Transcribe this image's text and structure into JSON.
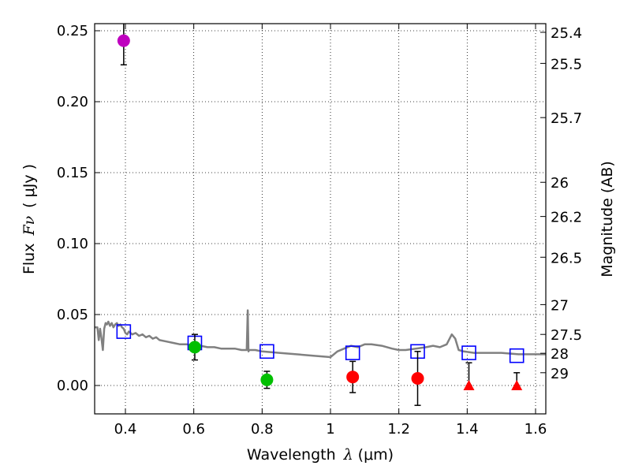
{
  "chart_data": {
    "type": "scatter",
    "xlabel_prefix": "Wavelength",
    "xlabel_symbol": "λ",
    "xlabel_units": "(μm)",
    "ylabel_prefix": "Flux",
    "ylabel_symbol": "Fν",
    "ylabel_units": "( μJy )",
    "y2label": "Magnitude (AB)",
    "xlim": [
      0.31,
      1.63
    ],
    "ylim": [
      -0.02,
      0.255
    ],
    "grid": true,
    "x_ticks": [
      0.4,
      0.6,
      0.8,
      1.0,
      1.2,
      1.4,
      1.6
    ],
    "x_tick_labels": [
      "0.4",
      "0.6",
      "0.8",
      "1",
      "1.2",
      "1.4",
      "1.6"
    ],
    "y_ticks": [
      0.0,
      0.05,
      0.1,
      0.15,
      0.2,
      0.25
    ],
    "y_tick_labels": [
      "0.00",
      "0.05",
      "0.10",
      "0.15",
      "0.20",
      "0.25"
    ],
    "mag_ticks": [
      {
        "label": "25.4",
        "flux": 0.2489
      },
      {
        "label": "25.5",
        "flux": 0.227
      },
      {
        "label": "25.7",
        "flux": 0.1888
      },
      {
        "label": "26",
        "flux": 0.1432
      },
      {
        "label": "26.2",
        "flux": 0.1191
      },
      {
        "label": "26.5",
        "flux": 0.0904
      },
      {
        "label": "27",
        "flux": 0.057
      },
      {
        "label": "27.5",
        "flux": 0.036
      },
      {
        "label": "28",
        "flux": 0.0227
      },
      {
        "label": "29",
        "flux": 0.009
      }
    ],
    "series": [
      {
        "name": "model-spectrum",
        "kind": "line",
        "color": "#808080",
        "x": [
          0.31,
          0.318,
          0.322,
          0.326,
          0.33,
          0.334,
          0.338,
          0.342,
          0.346,
          0.35,
          0.355,
          0.36,
          0.365,
          0.37,
          0.375,
          0.38,
          0.385,
          0.39,
          0.395,
          0.4,
          0.405,
          0.41,
          0.42,
          0.43,
          0.44,
          0.45,
          0.46,
          0.47,
          0.48,
          0.49,
          0.5,
          0.52,
          0.54,
          0.56,
          0.58,
          0.6,
          0.62,
          0.64,
          0.66,
          0.68,
          0.7,
          0.72,
          0.74,
          0.755,
          0.758,
          0.76,
          0.762,
          0.765,
          0.78,
          0.8,
          0.85,
          0.9,
          0.95,
          1.0,
          1.02,
          1.04,
          1.06,
          1.08,
          1.1,
          1.12,
          1.15,
          1.18,
          1.2,
          1.22,
          1.25,
          1.28,
          1.3,
          1.32,
          1.34,
          1.355,
          1.365,
          1.375,
          1.39,
          1.42,
          1.45,
          1.5,
          1.55,
          1.6,
          1.63
        ],
        "y": [
          0.041,
          0.041,
          0.032,
          0.04,
          0.033,
          0.025,
          0.04,
          0.044,
          0.043,
          0.045,
          0.042,
          0.044,
          0.041,
          0.043,
          0.044,
          0.042,
          0.043,
          0.041,
          0.04,
          0.037,
          0.036,
          0.038,
          0.036,
          0.037,
          0.035,
          0.036,
          0.034,
          0.035,
          0.033,
          0.034,
          0.032,
          0.031,
          0.03,
          0.029,
          0.029,
          0.028,
          0.028,
          0.027,
          0.027,
          0.026,
          0.026,
          0.026,
          0.025,
          0.025,
          0.053,
          0.024,
          0.025,
          0.025,
          0.025,
          0.024,
          0.023,
          0.022,
          0.021,
          0.02,
          0.024,
          0.026,
          0.028,
          0.027,
          0.029,
          0.029,
          0.028,
          0.026,
          0.025,
          0.025,
          0.026,
          0.027,
          0.028,
          0.027,
          0.029,
          0.036,
          0.033,
          0.025,
          0.024,
          0.023,
          0.023,
          0.023,
          0.022,
          0.022,
          0.022
        ]
      },
      {
        "name": "model-band-fluxes",
        "kind": "open-square",
        "color": "#0000ff",
        "x": [
          0.395,
          0.603,
          0.814,
          1.065,
          1.255,
          1.405,
          1.545
        ],
        "y": [
          0.038,
          0.03,
          0.024,
          0.023,
          0.024,
          0.023,
          0.021
        ]
      },
      {
        "name": "observed-magenta",
        "kind": "filled-circle",
        "color": "#bf00bf",
        "x": [
          0.395
        ],
        "y": [
          0.243
        ],
        "err": [
          0.017
        ]
      },
      {
        "name": "observed-green",
        "kind": "filled-circle",
        "color": "#00bf00",
        "x": [
          0.603,
          0.814
        ],
        "y": [
          0.027,
          0.004
        ],
        "err": [
          0.009,
          0.006
        ]
      },
      {
        "name": "observed-red",
        "kind": "filled-circle",
        "color": "#ff0000",
        "x": [
          1.065,
          1.255
        ],
        "y": [
          0.006,
          0.005
        ],
        "err": [
          0.011,
          0.019
        ]
      },
      {
        "name": "observed-red-limits",
        "kind": "filled-triangle",
        "color": "#ff0000",
        "x": [
          1.405,
          1.545
        ],
        "y": [
          0.0,
          0.0
        ],
        "err_up": [
          0.016,
          0.009
        ]
      }
    ]
  }
}
